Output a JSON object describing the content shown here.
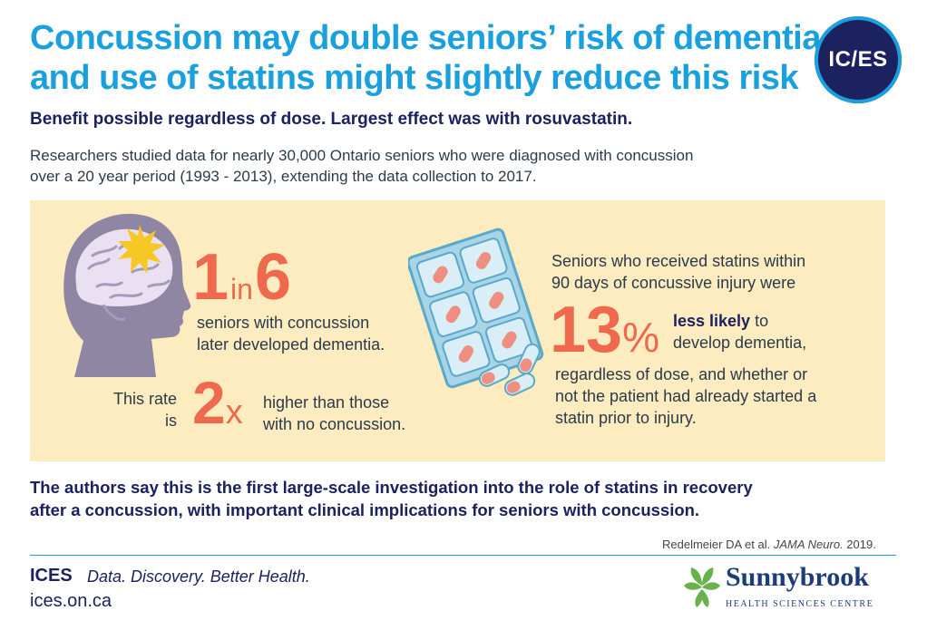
{
  "header": {
    "title_line1": "Concussion may double seniors’ risk of dementia,",
    "title_line2": "and use of statins might slightly reduce this risk",
    "logo_text": "IC/ES",
    "subtitle": "Benefit possible regardless of dose. Largest effect was with rosuvastatin."
  },
  "intro": {
    "line1": "Researchers studied data for nearly 30,000 Ontario seniors who were diagnosed with concussion",
    "line2": "over a 20 year period (1993 - 2013), extending the data collection to 2017."
  },
  "stats": {
    "ratio_num": "1",
    "ratio_in": "in",
    "ratio_den": "6",
    "ratio_desc_line1": "seniors with concussion",
    "ratio_desc_line2": "later developed dementia.",
    "rate_label_line1": "This rate",
    "rate_label_line2": "is",
    "multiplier_num": "2",
    "multiplier_x": "x",
    "multiplier_desc_line1": "higher than those",
    "multiplier_desc_line2": "with no concussion.",
    "statin_intro_line1": "Seniors who received statins within",
    "statin_intro_line2": "90 days of concussive injury were",
    "percent_num": "13",
    "percent_sign": "%",
    "less_likely_bold": "less likely",
    "less_likely_rest": " to",
    "less_likely_line2": "develop dementia,",
    "statin_detail_line1": "regardless of dose, and whether or",
    "statin_detail_line2": "not the patient had already started a",
    "statin_detail_line3": "statin prior to injury."
  },
  "conclusion": {
    "line1": "The authors say this is the first large-scale investigation into the role of statins in recovery",
    "line2": "after a concussion, with important clinical implications for seniors with concussion."
  },
  "citation": {
    "authors": "Redelmeier DA et al. ",
    "journal": "JAMA Neuro.",
    "year": " 2019."
  },
  "footer": {
    "brand": "ICES",
    "tagline": "Data. Discovery. Better Health.",
    "url": "ices.on.ca",
    "partner_name": "Sunnybrook",
    "partner_sub": "HEALTH SCIENCES CENTRE"
  },
  "colors": {
    "title_blue": "#1aa0dc",
    "navy": "#1c2160",
    "accent_orange": "#ef6a4d",
    "panel_bg": "#fcecc0"
  },
  "icons": [
    "brain-head-icon",
    "starburst-icon",
    "pill-blister-icon",
    "capsule-icon",
    "sunnybrook-leaf-icon"
  ]
}
